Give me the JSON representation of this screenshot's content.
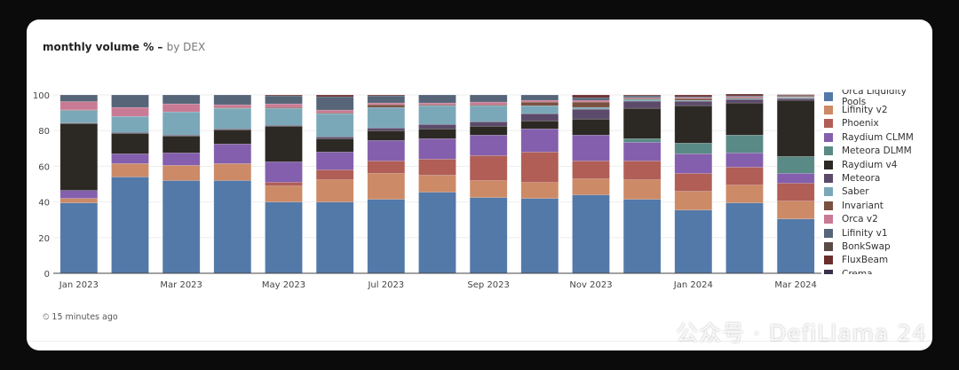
{
  "header": {
    "title": "monthly volume % –",
    "subtitle": "by DEX"
  },
  "footer": {
    "updated": "⏲ 15 minutes ago"
  },
  "watermark": "公众号 · DefiLlama 24",
  "chart_data": {
    "type": "bar",
    "stacked": true,
    "title": "monthly volume % – by DEX",
    "xlabel": "",
    "ylabel": "",
    "ylim": [
      0,
      100
    ],
    "yticks": [
      0,
      20,
      40,
      60,
      80,
      100
    ],
    "grid": true,
    "legend": "right",
    "categories": [
      "Jan 2023",
      "Feb 2023",
      "Mar 2023",
      "Apr 2023",
      "May 2023",
      "Jun 2023",
      "Jul 2023",
      "Aug 2023",
      "Sep 2023",
      "Oct 2023",
      "Nov 2023",
      "Dec 2023",
      "Jan 2024",
      "Feb 2024",
      "Mar 2024"
    ],
    "xtick_labels": [
      "Jan 2023",
      "",
      "Mar 2023",
      "",
      "May 2023",
      "",
      "Jul 2023",
      "",
      "Sep 2023",
      "",
      "Nov 2023",
      "",
      "Jan 2024",
      "",
      "Mar 2024"
    ],
    "series": [
      {
        "name": "Orca Liquidity Pools",
        "color": "#5379a8",
        "values": [
          39.5,
          54,
          52,
          52,
          40,
          40,
          41.5,
          45.5,
          42.5,
          42,
          44,
          41.5,
          35.5,
          39.5,
          30.5
        ]
      },
      {
        "name": "Lifinity v2",
        "color": "#cc8a66",
        "values": [
          2.5,
          7.5,
          8.5,
          9.5,
          9,
          12.5,
          14.5,
          9.5,
          9.5,
          9,
          9,
          11,
          10.5,
          10,
          10
        ]
      },
      {
        "name": "Phoenix",
        "color": "#b05e56",
        "values": [
          0,
          0,
          0,
          0,
          2,
          5.5,
          7,
          9,
          14,
          17,
          10,
          10.5,
          10,
          10,
          10
        ]
      },
      {
        "name": "Raydium CLMM",
        "color": "#845fad",
        "values": [
          4.5,
          5.5,
          7,
          11,
          11.5,
          10,
          11.5,
          11.5,
          11.5,
          13,
          14.5,
          10.5,
          11,
          8,
          5.5
        ]
      },
      {
        "name": "Meteora DLMM",
        "color": "#5a8a85",
        "values": [
          0,
          0,
          0,
          0,
          0,
          0,
          0,
          0,
          0,
          0,
          0,
          2,
          6,
          10,
          9.5
        ]
      },
      {
        "name": "Raydium v4",
        "color": "#2c2824",
        "values": [
          37.5,
          11.5,
          9.5,
          8,
          20,
          7.5,
          5.5,
          5.5,
          5,
          4.5,
          9,
          17,
          21,
          18,
          31.5
        ]
      },
      {
        "name": "Meteora",
        "color": "#5c4a6a",
        "values": [
          0.3,
          0.5,
          0.5,
          0.5,
          0.5,
          1,
          1.5,
          2.5,
          2.5,
          4,
          5.5,
          4,
          2.5,
          2,
          1
        ]
      },
      {
        "name": "Saber",
        "color": "#7aa8b8",
        "values": [
          7,
          9,
          13,
          11.5,
          9.5,
          13,
          11.5,
          10.5,
          9,
          4.5,
          1,
          1,
          0.5,
          0.5,
          0.5
        ]
      },
      {
        "name": "Invariant",
        "color": "#7a5040",
        "values": [
          0.3,
          0,
          0,
          0.3,
          0.5,
          0.5,
          1.5,
          0.5,
          0.5,
          2,
          3,
          0.5,
          1,
          0.5,
          0.3
        ]
      },
      {
        "name": "Orca v2",
        "color": "#c97a95",
        "values": [
          4.7,
          5,
          4.5,
          1.7,
          2,
          1.5,
          1,
          1,
          1.5,
          1,
          1,
          0.5,
          0.5,
          0.5,
          0.2
        ]
      },
      {
        "name": "Lifinity v1",
        "color": "#566578",
        "values": [
          3.7,
          7,
          5,
          5.5,
          4.5,
          7.5,
          4,
          4.5,
          4,
          3,
          1.5,
          1,
          0.5,
          0.5,
          0.2
        ]
      },
      {
        "name": "BonkSwap",
        "color": "#5a4a46",
        "values": [
          0,
          0,
          0,
          0,
          0,
          0,
          0,
          0,
          0,
          0,
          0,
          0,
          0,
          0,
          0.5
        ]
      },
      {
        "name": "FluxBeam",
        "color": "#6a2e2e",
        "values": [
          0,
          0,
          0,
          0,
          0.5,
          1,
          0.5,
          0,
          0,
          0,
          1.5,
          0.5,
          1,
          1,
          0.5
        ]
      },
      {
        "name": "Crema",
        "color": "#3a2f4a",
        "values": [
          0,
          0,
          0,
          0,
          0,
          0,
          0,
          0,
          0,
          0,
          0,
          0,
          0,
          0,
          0
        ]
      }
    ]
  }
}
